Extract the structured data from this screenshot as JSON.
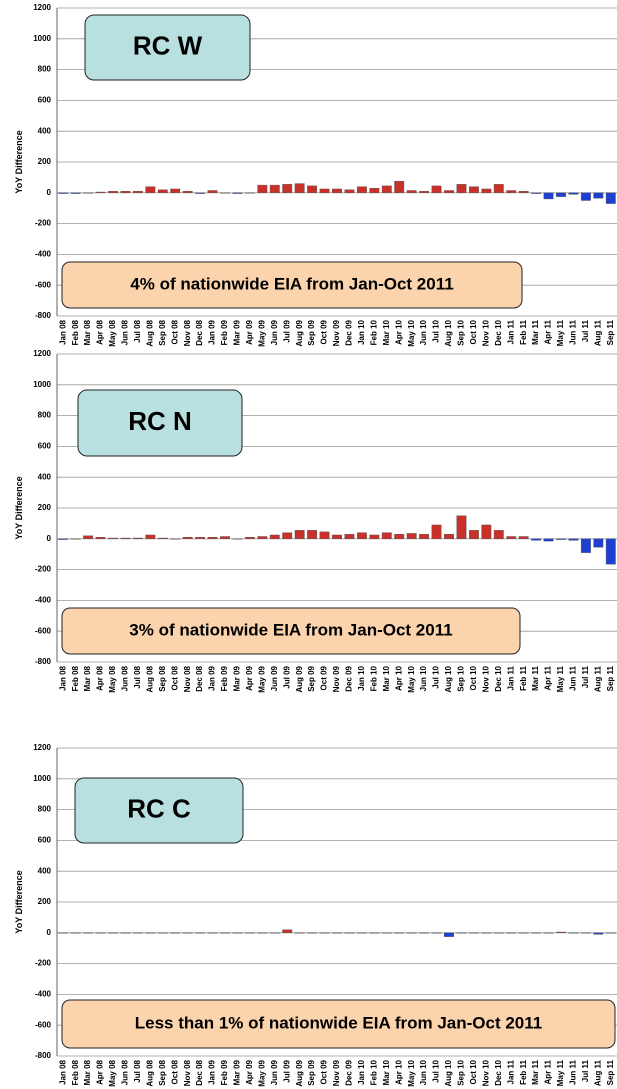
{
  "chart_data": [
    {
      "type": "bar",
      "title": "RC W",
      "annotation": "4% of nationwide EIA from Jan-Oct 2011",
      "ylabel": "YoY Difference",
      "categories": [
        "Jan 08",
        "Feb 08",
        "Mar 08",
        "Apr 08",
        "May 08",
        "Jun 08",
        "Jul 08",
        "Aug 08",
        "Sep 08",
        "Oct 08",
        "Nov 08",
        "Dec 08",
        "Jan 09",
        "Feb 09",
        "Mar 09",
        "Apr 09",
        "May 09",
        "Jun 09",
        "Jul 09",
        "Aug 09",
        "Sep 09",
        "Oct 09",
        "Nov 09",
        "Dec 09",
        "Jan 10",
        "Feb 10",
        "Mar 10",
        "Apr 10",
        "May 10",
        "Jun 10",
        "Jul 10",
        "Aug 10",
        "Sep 10",
        "Oct 10",
        "Nov 10",
        "Dec 10",
        "Jan 11",
        "Feb 11",
        "Mar 11",
        "Apr 11",
        "May 11",
        "Jun 11",
        "Jul 11",
        "Aug 11",
        "Sep 11"
      ],
      "values": [
        -5,
        -5,
        0,
        5,
        10,
        10,
        10,
        40,
        20,
        25,
        10,
        -5,
        15,
        0,
        -5,
        0,
        50,
        50,
        55,
        60,
        45,
        25,
        25,
        20,
        40,
        30,
        45,
        75,
        15,
        10,
        45,
        15,
        55,
        40,
        25,
        55,
        15,
        10,
        -5,
        -40,
        -25,
        -10,
        -50,
        -35,
        -70
      ],
      "positive_color": "#c8302a",
      "negative_color": "#1f3fd0",
      "ylim": [
        -800,
        1200
      ],
      "yticks": [
        -800,
        -600,
        -400,
        -200,
        0,
        200,
        400,
        600,
        800,
        1000,
        1200
      ],
      "grid": true
    },
    {
      "type": "bar",
      "title": "RC N",
      "annotation": "3% of nationwide EIA from Jan-Oct 2011",
      "ylabel": "YoY Difference",
      "categories": [
        "Jan 08",
        "Feb 08",
        "Mar 08",
        "Apr 08",
        "May 08",
        "Jun 08",
        "Jul 08",
        "Aug 08",
        "Sep 08",
        "Oct 08",
        "Nov 08",
        "Dec 08",
        "Jan 09",
        "Feb 09",
        "Mar 09",
        "Apr 09",
        "May 09",
        "Jun 09",
        "Jul 09",
        "Aug 09",
        "Sep 09",
        "Oct 09",
        "Nov 09",
        "Dec 09",
        "Jan 10",
        "Feb 10",
        "Mar 10",
        "Apr 10",
        "May 10",
        "Jun 10",
        "Jul 10",
        "Aug 10",
        "Sep 10",
        "Oct 10",
        "Nov 10",
        "Dec 10",
        "Jan 11",
        "Feb 11",
        "Mar 11",
        "Apr 11",
        "May 11",
        "Jun 11",
        "Jul 11",
        "Aug 11",
        "Sep 11"
      ],
      "values": [
        -5,
        0,
        20,
        10,
        5,
        5,
        5,
        25,
        5,
        0,
        10,
        10,
        10,
        15,
        0,
        10,
        15,
        25,
        40,
        55,
        55,
        45,
        25,
        30,
        40,
        25,
        40,
        30,
        35,
        30,
        90,
        30,
        150,
        55,
        90,
        55,
        15,
        15,
        -10,
        -15,
        -5,
        -10,
        -90,
        -55,
        -165
      ],
      "positive_color": "#c8302a",
      "negative_color": "#1f3fd0",
      "ylim": [
        -800,
        1200
      ],
      "yticks": [
        -800,
        -600,
        -400,
        -200,
        0,
        200,
        400,
        600,
        800,
        1000,
        1200
      ],
      "grid": true
    },
    {
      "type": "bar",
      "title": "RC C",
      "annotation": "Less than 1% of nationwide EIA from Jan-Oct  2011",
      "ylabel": "YoY Difference",
      "categories": [
        "Jan 08",
        "Feb 08",
        "Mar 08",
        "Apr 08",
        "May 08",
        "Jun 08",
        "Jul 08",
        "Aug 08",
        "Sep 08",
        "Oct 08",
        "Nov 08",
        "Dec 08",
        "Jan 09",
        "Feb 09",
        "Mar 09",
        "Apr 09",
        "May 09",
        "Jun 09",
        "Jul 09",
        "Aug 09",
        "Sep 09",
        "Oct 09",
        "Nov 09",
        "Dec 09",
        "Jan 10",
        "Feb 10",
        "Mar 10",
        "Apr 10",
        "May 10",
        "Jun 10",
        "Jul 10",
        "Aug 10",
        "Sep 10",
        "Oct 10",
        "Nov 10",
        "Dec 10",
        "Jan 11",
        "Feb 11",
        "Mar 11",
        "Apr 11",
        "May 11",
        "Jun 11",
        "Jul 11",
        "Aug 11",
        "Sep 11"
      ],
      "values": [
        -3,
        -2,
        -2,
        -3,
        -2,
        -2,
        -2,
        -3,
        -2,
        -2,
        -3,
        -2,
        -2,
        -3,
        -2,
        -2,
        -3,
        -2,
        20,
        -3,
        -2,
        -2,
        -3,
        -2,
        -2,
        -3,
        -2,
        -2,
        -3,
        -2,
        -2,
        -25,
        -3,
        -2,
        -2,
        -3,
        -2,
        -2,
        -3,
        -2,
        5,
        -2,
        -3,
        -10,
        -3
      ],
      "positive_color": "#c8302a",
      "negative_color": "#1f3fd0",
      "ylim": [
        -800,
        1200
      ],
      "yticks": [
        -800,
        -600,
        -400,
        -200,
        0,
        200,
        400,
        600,
        800,
        1000,
        1200
      ],
      "grid": true
    }
  ]
}
